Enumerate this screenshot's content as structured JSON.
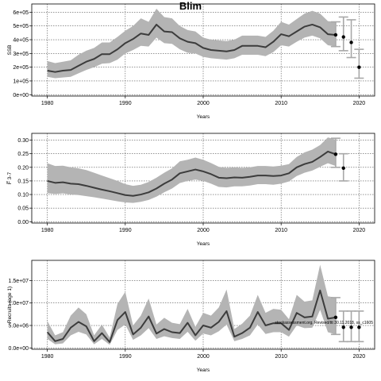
{
  "figure": {
    "title": "Blim",
    "footnote": "stockassessment.org, Revised/ttt 30.11.2018, ss_c1605"
  },
  "style": {
    "band_color": "#b4b4b4",
    "line_color": "#3c3c3c",
    "errorbar_color": "#a8a8a8",
    "point_color": "#000000",
    "grid_color": "#555555"
  },
  "chart_data": [
    {
      "type": "line",
      "ylabel": "SSB",
      "xlabel": "Years",
      "xlim": [
        1978,
        2022
      ],
      "ylim": [
        -10000,
        660000
      ],
      "xticks": [
        1980,
        1990,
        2000,
        2010,
        2020
      ],
      "yticks": [
        0,
        100000,
        200000,
        300000,
        400000,
        500000,
        600000
      ],
      "ytick_labels": [
        "0e+00",
        "1e+05",
        "2e+05",
        "3e+05",
        "4e+05",
        "5e+05",
        "6e+05"
      ],
      "grid": true,
      "x": [
        1980,
        1981,
        1982,
        1983,
        1984,
        1985,
        1986,
        1987,
        1988,
        1989,
        1990,
        1991,
        1992,
        1993,
        1994,
        1995,
        1996,
        1997,
        1998,
        1999,
        2000,
        2001,
        2002,
        2003,
        2004,
        2005,
        2006,
        2007,
        2008,
        2009,
        2010,
        2011,
        2012,
        2013,
        2014,
        2015,
        2016,
        2017
      ],
      "series": [
        {
          "values": [
            175000,
            165000,
            175000,
            180000,
            210000,
            240000,
            260000,
            295000,
            295000,
            330000,
            375000,
            405000,
            445000,
            435000,
            510000,
            460000,
            455000,
            410000,
            385000,
            375000,
            340000,
            325000,
            320000,
            315000,
            325000,
            355000,
            355000,
            355000,
            345000,
            385000,
            440000,
            425000,
            460000,
            495000,
            510000,
            490000,
            440000,
            435000
          ],
          "lower": [
            130000,
            120000,
            125000,
            130000,
            155000,
            180000,
            200000,
            225000,
            230000,
            255000,
            300000,
            325000,
            355000,
            350000,
            415000,
            375000,
            370000,
            330000,
            305000,
            300000,
            275000,
            265000,
            260000,
            255000,
            265000,
            290000,
            290000,
            290000,
            280000,
            310000,
            360000,
            350000,
            385000,
            415000,
            430000,
            410000,
            360000,
            350000
          ],
          "upper": [
            245000,
            230000,
            240000,
            250000,
            290000,
            320000,
            340000,
            380000,
            380000,
            420000,
            465000,
            500000,
            555000,
            530000,
            625000,
            565000,
            555000,
            500000,
            470000,
            460000,
            415000,
            400000,
            395000,
            390000,
            400000,
            430000,
            430000,
            430000,
            420000,
            465000,
            530000,
            510000,
            550000,
            590000,
            610000,
            590000,
            535000,
            530000
          ]
        }
      ],
      "forecast": {
        "x": [
          2017,
          2018,
          2019,
          2020
        ],
        "values": [
          435000,
          420000,
          380000,
          200000
        ],
        "lower": [
          350000,
          320000,
          270000,
          120000
        ],
        "upper": [
          530000,
          565000,
          545000,
          330000
        ]
      }
    },
    {
      "type": "line",
      "ylabel": "F̅ 3-7",
      "xlabel": "Years",
      "xlim": [
        1978,
        2022
      ],
      "ylim": [
        -0.005,
        0.325
      ],
      "xticks": [
        1980,
        1990,
        2000,
        2010,
        2020
      ],
      "yticks": [
        0,
        0.05,
        0.1,
        0.15,
        0.2,
        0.25,
        0.3
      ],
      "ytick_labels": [
        "0.00",
        "0.05",
        "0.10",
        "0.15",
        "0.20",
        "0.25",
        "0.30"
      ],
      "grid": true,
      "x": [
        1980,
        1981,
        1982,
        1983,
        1984,
        1985,
        1986,
        1987,
        1988,
        1989,
        1990,
        1991,
        1992,
        1993,
        1994,
        1995,
        1996,
        1997,
        1998,
        1999,
        2000,
        2001,
        2002,
        2003,
        2004,
        2005,
        2006,
        2007,
        2008,
        2009,
        2010,
        2011,
        2012,
        2013,
        2014,
        2015,
        2016,
        2017
      ],
      "series": [
        {
          "values": [
            0.15,
            0.143,
            0.145,
            0.14,
            0.138,
            0.132,
            0.125,
            0.118,
            0.112,
            0.105,
            0.098,
            0.095,
            0.1,
            0.108,
            0.122,
            0.14,
            0.155,
            0.178,
            0.185,
            0.192,
            0.185,
            0.175,
            0.162,
            0.16,
            0.163,
            0.162,
            0.165,
            0.17,
            0.17,
            0.168,
            0.17,
            0.178,
            0.2,
            0.212,
            0.22,
            0.238,
            0.258,
            0.248
          ],
          "lower": [
            0.105,
            0.102,
            0.104,
            0.1,
            0.098,
            0.094,
            0.09,
            0.085,
            0.08,
            0.075,
            0.071,
            0.069,
            0.073,
            0.08,
            0.092,
            0.108,
            0.122,
            0.142,
            0.15,
            0.155,
            0.15,
            0.14,
            0.128,
            0.126,
            0.13,
            0.13,
            0.133,
            0.138,
            0.138,
            0.136,
            0.14,
            0.148,
            0.168,
            0.18,
            0.188,
            0.202,
            0.215,
            0.205
          ],
          "upper": [
            0.215,
            0.205,
            0.206,
            0.2,
            0.196,
            0.19,
            0.18,
            0.17,
            0.16,
            0.15,
            0.138,
            0.132,
            0.136,
            0.146,
            0.162,
            0.18,
            0.196,
            0.222,
            0.228,
            0.236,
            0.228,
            0.216,
            0.202,
            0.198,
            0.2,
            0.198,
            0.2,
            0.205,
            0.205,
            0.203,
            0.206,
            0.212,
            0.238,
            0.255,
            0.265,
            0.282,
            0.31,
            0.302
          ]
        }
      ],
      "forecast": {
        "x": [
          2017,
          2018
        ],
        "values": [
          0.248,
          0.197
        ],
        "lower": [
          0.2,
          0.15
        ],
        "upper": [
          0.307,
          0.25
        ]
      }
    },
    {
      "type": "line",
      "ylabel": "Recruits (age 1)",
      "xlabel": "Years",
      "xlim": [
        1978,
        2022
      ],
      "ylim": [
        -300000,
        19500000
      ],
      "xticks": [
        1980,
        1990,
        2000,
        2010,
        2020
      ],
      "yticks": [
        0,
        5000000,
        10000000,
        15000000
      ],
      "ytick_labels": [
        "0.0e+00",
        "5.0e+06",
        "1.0e+07",
        "1.5e+07"
      ],
      "grid": true,
      "x": [
        1980,
        1981,
        1982,
        1983,
        1984,
        1985,
        1986,
        1987,
        1988,
        1989,
        1990,
        1991,
        1992,
        1993,
        1994,
        1995,
        1996,
        1997,
        1998,
        1999,
        2000,
        2001,
        2002,
        2003,
        2004,
        2005,
        2006,
        2007,
        2008,
        2009,
        2010,
        2011,
        2012,
        2013,
        2014,
        2015,
        2016,
        2017
      ],
      "series": [
        {
          "values": [
            3500000,
            1500000,
            2000000,
            4500000,
            5800000,
            4800000,
            1500000,
            3300000,
            1300000,
            6200000,
            8000000,
            3000000,
            4500000,
            7000000,
            3200000,
            4200000,
            3500000,
            3300000,
            5600000,
            2800000,
            5000000,
            4500000,
            5800000,
            8200000,
            2500000,
            3300000,
            4500000,
            8000000,
            5000000,
            5500000,
            5500000,
            4000000,
            7800000,
            6800000,
            7000000,
            12800000,
            6500000,
            6800000
          ],
          "lower": [
            2000000,
            800000,
            1000000,
            2800000,
            3600000,
            3000000,
            800000,
            2000000,
            700000,
            4000000,
            5200000,
            1800000,
            2800000,
            4400000,
            2000000,
            2600000,
            2200000,
            2000000,
            3600000,
            1600000,
            3200000,
            2800000,
            3700000,
            5200000,
            1500000,
            2000000,
            2800000,
            5200000,
            3100000,
            3500000,
            3500000,
            2500000,
            5000000,
            4400000,
            4500000,
            8500000,
            3500000,
            3000000
          ],
          "upper": [
            6000000,
            2800000,
            3500000,
            7200000,
            9000000,
            7500000,
            2800000,
            5200000,
            2300000,
            9800000,
            12500000,
            5000000,
            7200000,
            11000000,
            5200000,
            6700000,
            5600000,
            5300000,
            8700000,
            4700000,
            7800000,
            7200000,
            9000000,
            13000000,
            4200000,
            5400000,
            7200000,
            11800000,
            7800000,
            8700000,
            8500000,
            6400000,
            11800000,
            10300000,
            10600000,
            18500000,
            11500000,
            11200000
          ]
        }
      ],
      "forecast": {
        "x": [
          2017,
          2018,
          2019,
          2020
        ],
        "values": [
          6800000,
          4600000,
          4600000,
          4600000
        ],
        "lower": [
          3000000,
          1400000,
          1400000,
          1400000
        ],
        "upper": [
          11200000,
          8200000,
          8200000,
          8200000
        ]
      }
    }
  ]
}
